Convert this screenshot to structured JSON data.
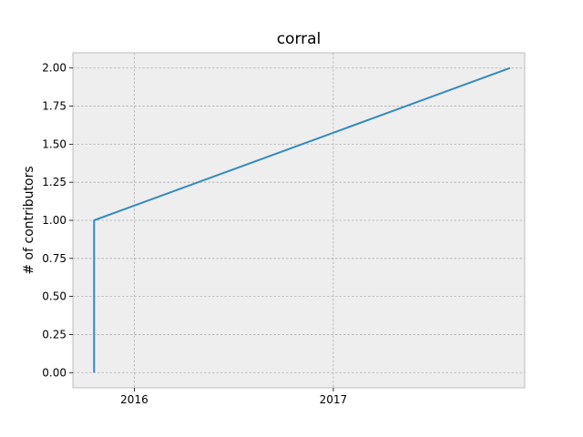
{
  "chart_data": {
    "type": "line",
    "title": "corral",
    "xlabel": "",
    "ylabel": "# of contributors",
    "x_ticks": [
      "2016-01-01",
      "2017-01-01"
    ],
    "x_tick_labels": [
      "2016",
      "2017"
    ],
    "xlim": [
      "2015-09-10",
      "2017-12-19"
    ],
    "y_ticks": [
      0.0,
      0.25,
      0.5,
      0.75,
      1.0,
      1.25,
      1.5,
      1.75,
      2.0
    ],
    "y_tick_labels": [
      "0.00",
      "0.25",
      "0.50",
      "0.75",
      "1.00",
      "1.25",
      "1.50",
      "1.75",
      "2.00"
    ],
    "ylim": [
      -0.1,
      2.1
    ],
    "grid": true,
    "series": [
      {
        "color": "#348ABD",
        "points": [
          {
            "x": "2015-10-19",
            "y": 0
          },
          {
            "x": "2015-10-19",
            "y": 1
          },
          {
            "x": "2017-11-22",
            "y": 2
          }
        ]
      }
    ]
  }
}
